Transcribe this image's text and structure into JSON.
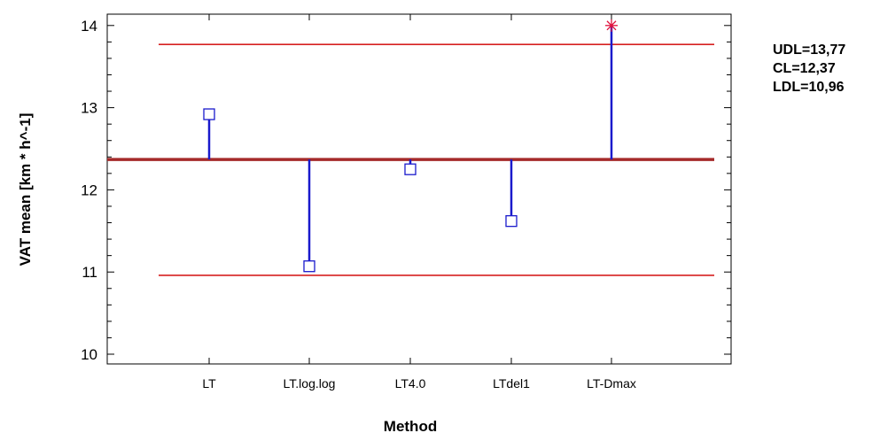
{
  "chart_data": {
    "type": "scatter",
    "title": "",
    "xlabel": "Method",
    "ylabel": "VAT mean [km * h^-1]",
    "ylim": [
      9.8,
      14.1
    ],
    "yticks": [
      10,
      11,
      12,
      13,
      14
    ],
    "categories": [
      "LT",
      "LT.log.log",
      "LT4.0",
      "LTdel1",
      "LT-Dmax"
    ],
    "values": [
      12.92,
      11.07,
      12.25,
      11.62,
      14.0
    ],
    "markers": [
      "square",
      "square",
      "square",
      "square",
      "asterisk"
    ],
    "limits": {
      "udl": 13.77,
      "cl": 12.37,
      "ldl": 10.96
    },
    "limit_labels": [
      "UDL=13,77",
      "CL=12,37",
      "LDL=10,96"
    ],
    "grid": false,
    "legend_placement": "top-right",
    "colors": {
      "limit_line": "#d62020",
      "center_line": "#a52a2a",
      "stem": "#1a1acc",
      "marker": "#1a1acc",
      "outlier_marker": "#e0103c"
    }
  }
}
